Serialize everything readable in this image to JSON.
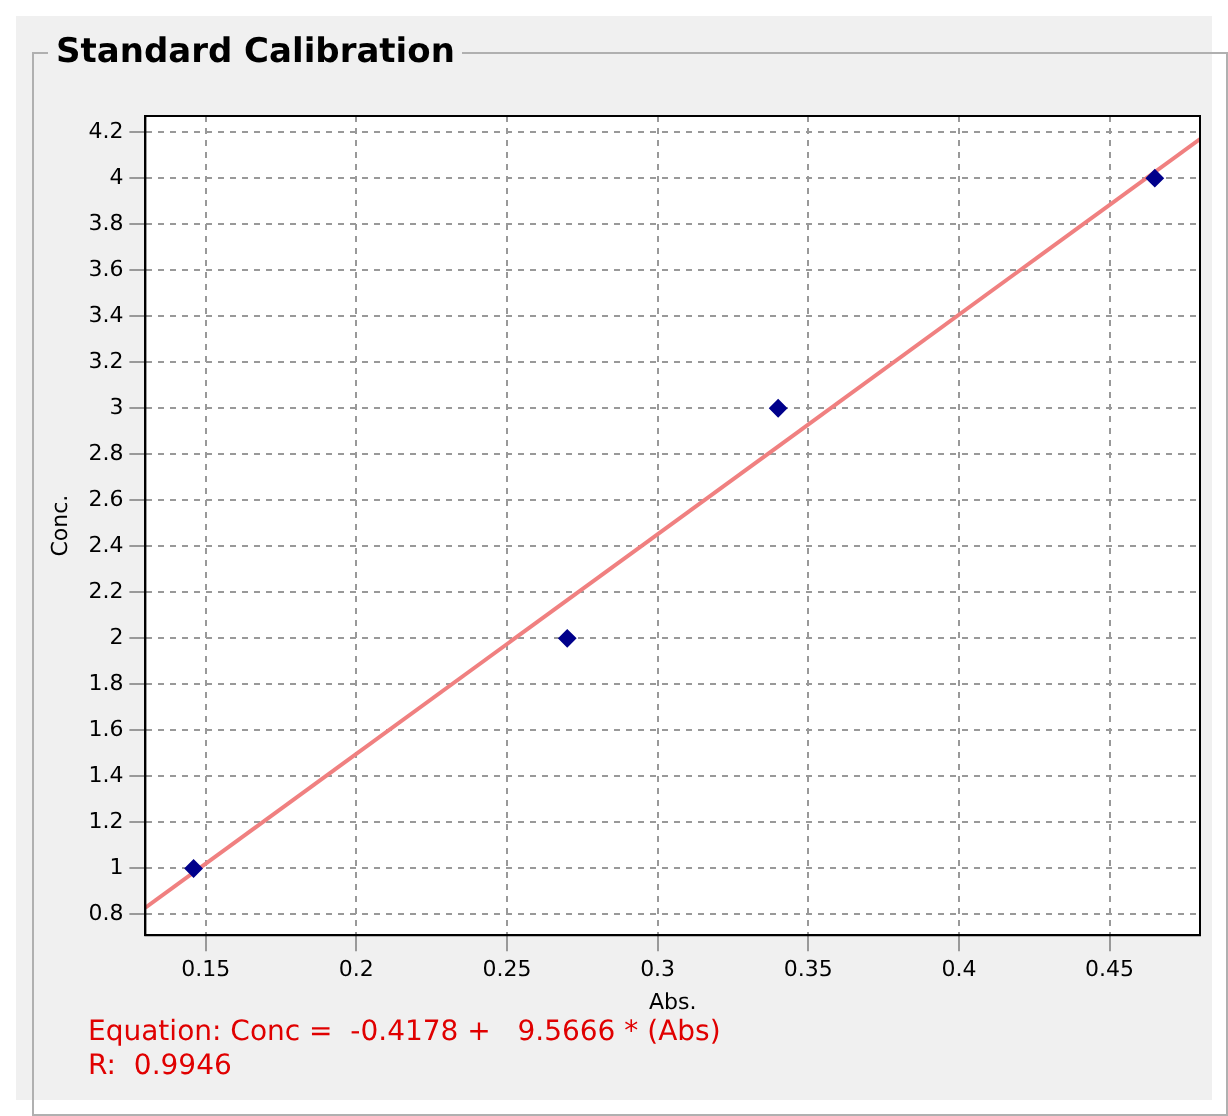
{
  "chart_data": {
    "type": "scatter",
    "title": "Standard Calibration",
    "xlabel": "Abs.",
    "ylabel": "Conc.",
    "xlim": [
      0.13,
      0.48
    ],
    "xticks": [
      0.15,
      0.2,
      0.25,
      0.3,
      0.35,
      0.4,
      0.45
    ],
    "ylim": [
      0.71,
      4.27
    ],
    "yticks": [
      0.8,
      1,
      1.2,
      1.4,
      1.6,
      1.8,
      2,
      2.2,
      2.4,
      2.6,
      2.8,
      3,
      3.2,
      3.4,
      3.6,
      3.8,
      4,
      4.2
    ],
    "grid": true,
    "legend": false,
    "marker": "diamond",
    "series": [
      {
        "type": "scatter",
        "color": "#00008b",
        "x": [
          0.146,
          0.27,
          0.34,
          0.465
        ],
        "values": [
          1,
          2,
          3,
          4
        ]
      },
      {
        "type": "line",
        "color": "#f08080",
        "x": [
          0.13,
          0.48
        ],
        "values": [
          0.83,
          4.17
        ],
        "marker": "none",
        "line_style": "solid"
      }
    ],
    "annotations": [
      "Equation: Conc =  -0.4178 +   9.5666 * (Abs)",
      "R:  0.9946"
    ]
  }
}
